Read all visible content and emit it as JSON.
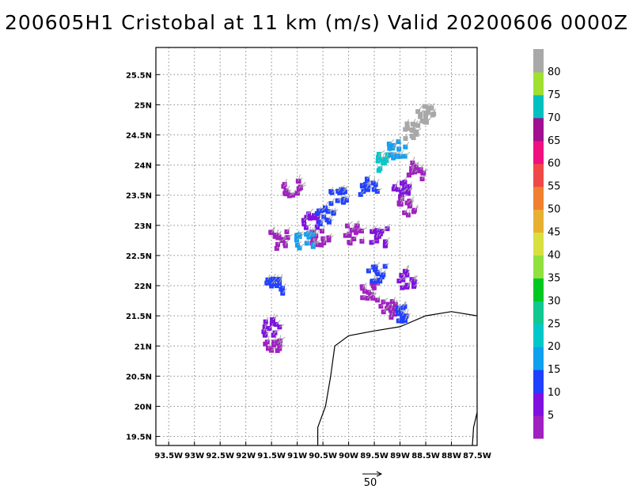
{
  "chart_data": {
    "type": "scatter",
    "title": "200605H1 Cristobal at 11 km (m/s) Valid 20200606 0000Z",
    "xlim": [
      -93.75,
      -87.5
    ],
    "ylim": [
      19.35,
      25.95
    ],
    "x_ticks": [
      -93.5,
      -93,
      -92.5,
      -92,
      -91.5,
      -91,
      -90.5,
      -90,
      -89.5,
      -89,
      -88.5,
      -88,
      -87.5
    ],
    "x_tick_labels": [
      "93.5W",
      "93W",
      "92.5W",
      "92W",
      "91.5W",
      "91W",
      "90.5W",
      "90W",
      "89.5W",
      "89W",
      "88.5W",
      "88W",
      "87.5W"
    ],
    "y_ticks": [
      19.5,
      20,
      20.5,
      21,
      21.5,
      22,
      22.5,
      23,
      23.5,
      24,
      24.5,
      25,
      25.5
    ],
    "y_tick_labels": [
      "19.5N",
      "20N",
      "20.5N",
      "21N",
      "21.5N",
      "22N",
      "22.5N",
      "23N",
      "23.5N",
      "24N",
      "24.5N",
      "25N",
      "25.5N"
    ],
    "grid": true,
    "reference_vector_label": "50",
    "colorbar": {
      "labels": [
        "5",
        "10",
        "15",
        "20",
        "25",
        "30",
        "35",
        "40",
        "45",
        "50",
        "55",
        "60",
        "65",
        "70",
        "75",
        "80"
      ],
      "bounds": [
        0,
        5,
        10,
        15,
        20,
        25,
        30,
        35,
        40,
        45,
        50,
        55,
        60,
        65,
        70,
        75,
        80,
        85
      ],
      "colors": [
        "#a020c0",
        "#8010e0",
        "#2040ff",
        "#10a0f0",
        "#00c8c8",
        "#10c890",
        "#00c820",
        "#90e040",
        "#d8e040",
        "#e8b030",
        "#f08030",
        "#f04848",
        "#f01080",
        "#a01090",
        "#00c0c0",
        "#a0e030",
        "#a8a8a8"
      ]
    },
    "coastline": [
      [
        [
          -90.6,
          19.25
        ],
        [
          -90.6,
          19.65
        ],
        [
          -90.45,
          20.0
        ],
        [
          -90.35,
          20.5
        ],
        [
          -90.27,
          21.0
        ],
        [
          -90.0,
          21.17
        ],
        [
          -89.5,
          21.25
        ],
        [
          -89.0,
          21.32
        ],
        [
          -88.5,
          21.5
        ],
        [
          -88.0,
          21.57
        ],
        [
          -87.5,
          21.5
        ]
      ],
      [
        [
          -87.5,
          19.9
        ],
        [
          -87.57,
          19.65
        ],
        [
          -87.6,
          19.25
        ]
      ]
    ],
    "wind_clusters": [
      {
        "lon": -89.3,
        "lat": 24.05,
        "color": "#00c8c8"
      },
      {
        "lon": -89.05,
        "lat": 24.25,
        "color": "#10a0f0"
      },
      {
        "lon": -88.75,
        "lat": 24.55,
        "color": "#a8a8a8"
      },
      {
        "lon": -88.5,
        "lat": 24.85,
        "color": "#a8a8a8"
      },
      {
        "lon": -88.7,
        "lat": 23.9,
        "color": "#a020c0"
      },
      {
        "lon": -88.95,
        "lat": 23.6,
        "color": "#8010e0"
      },
      {
        "lon": -88.85,
        "lat": 23.3,
        "color": "#a020c0"
      },
      {
        "lon": -89.6,
        "lat": 23.65,
        "color": "#2040ff"
      },
      {
        "lon": -89.9,
        "lat": 22.85,
        "color": "#a020c0"
      },
      {
        "lon": -89.4,
        "lat": 22.8,
        "color": "#8010e0"
      },
      {
        "lon": -89.6,
        "lat": 21.9,
        "color": "#a020c0"
      },
      {
        "lon": -89.45,
        "lat": 22.2,
        "color": "#2040ff"
      },
      {
        "lon": -89.25,
        "lat": 21.6,
        "color": "#a020c0"
      },
      {
        "lon": -88.95,
        "lat": 21.55,
        "color": "#2040ff"
      },
      {
        "lon": -88.85,
        "lat": 22.1,
        "color": "#8010e0"
      },
      {
        "lon": -91.1,
        "lat": 23.6,
        "color": "#a020c0"
      },
      {
        "lon": -90.75,
        "lat": 23.05,
        "color": "#8010e0"
      },
      {
        "lon": -90.45,
        "lat": 23.15,
        "color": "#2040ff"
      },
      {
        "lon": -90.2,
        "lat": 23.45,
        "color": "#2040ff"
      },
      {
        "lon": -90.55,
        "lat": 22.8,
        "color": "#a020c0"
      },
      {
        "lon": -90.85,
        "lat": 22.75,
        "color": "#10a0f0"
      },
      {
        "lon": -91.35,
        "lat": 22.75,
        "color": "#a020c0"
      },
      {
        "lon": -91.45,
        "lat": 22.0,
        "color": "#2040ff"
      },
      {
        "lon": -91.5,
        "lat": 21.3,
        "color": "#8010e0"
      },
      {
        "lon": -91.5,
        "lat": 20.95,
        "color": "#a020c0"
      }
    ]
  }
}
